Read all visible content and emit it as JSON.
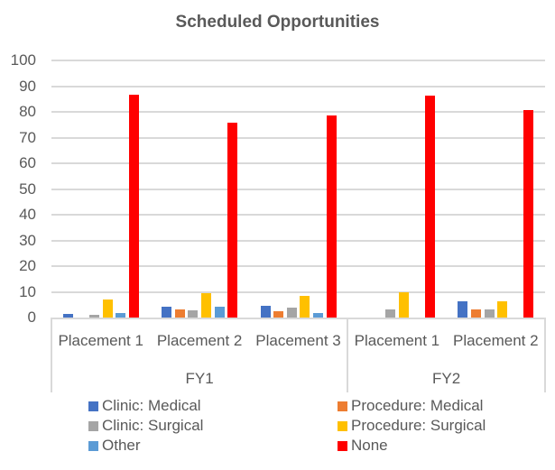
{
  "chart_data": {
    "type": "bar",
    "title": "Scheduled Opportunities",
    "xlabel": "",
    "ylabel": "",
    "ylim": [
      0,
      100
    ],
    "yticks": [
      0,
      10,
      20,
      30,
      40,
      50,
      60,
      70,
      80,
      90,
      100
    ],
    "grid": true,
    "legend_position": "bottom",
    "groups": [
      {
        "label": "FY1",
        "categories": [
          "Placement 1",
          "Placement 2",
          "Placement 3"
        ]
      },
      {
        "label": "FY2",
        "categories": [
          "Placement 1",
          "Placement 2"
        ]
      }
    ],
    "categories": [
      "FY1 Placement 1",
      "FY1 Placement 2",
      "FY1 Placement 3",
      "FY2 Placement 1",
      "FY2 Placement 2"
    ],
    "series": [
      {
        "name": "Clinic: Medical",
        "color": "#4472c4",
        "values": [
          1.5,
          4.1,
          4.5,
          0,
          6.4
        ]
      },
      {
        "name": "Procedure: Medical",
        "color": "#ed7d31",
        "values": [
          0,
          3.1,
          2.3,
          0,
          3.1
        ]
      },
      {
        "name": "Clinic: Surgical",
        "color": "#a5a5a5",
        "values": [
          1.1,
          2.8,
          3.7,
          3.1,
          3.1
        ]
      },
      {
        "name": "Procedure: Surgical",
        "color": "#ffc000",
        "values": [
          6.9,
          9.6,
          8.4,
          9.8,
          6.4
        ]
      },
      {
        "name": "Other",
        "color": "#5b9bd5",
        "values": [
          1.8,
          4.1,
          1.6,
          0,
          0
        ]
      },
      {
        "name": "None",
        "color": "#ff0000",
        "values": [
          86.7,
          75.8,
          78.6,
          86.4,
          80.6
        ]
      }
    ]
  },
  "legend": {
    "items": [
      {
        "label": "Clinic: Medical",
        "color": "#4472c4"
      },
      {
        "label": "Procedure: Medical",
        "color": "#ed7d31"
      },
      {
        "label": "Clinic: Surgical",
        "color": "#a5a5a5"
      },
      {
        "label": "Procedure: Surgical",
        "color": "#ffc000"
      },
      {
        "label": "Other",
        "color": "#5b9bd5"
      },
      {
        "label": "None",
        "color": "#ff0000"
      }
    ]
  }
}
